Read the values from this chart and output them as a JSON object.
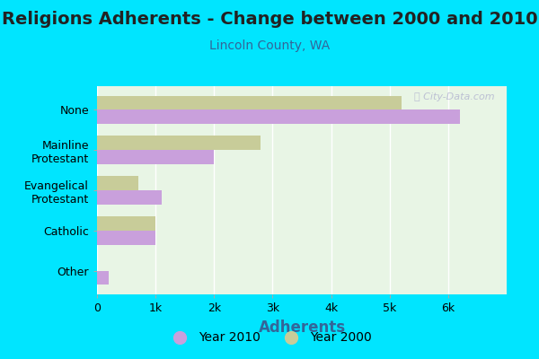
{
  "title": "Religions Adherents - Change between 2000 and 2010",
  "subtitle": "Lincoln County, WA",
  "xlabel": "Adherents",
  "categories": [
    "None",
    "Mainline\nProtestant",
    "Evangelical\nProtestant",
    "Catholic",
    "Other"
  ],
  "values_2010": [
    6200,
    2000,
    1100,
    1000,
    200
  ],
  "values_2000": [
    5200,
    2800,
    700,
    1000,
    0
  ],
  "color_2010": "#c9a0dc",
  "color_2000": "#c8cc99",
  "bg_outer": "#00e5ff",
  "bg_plot": "#e8f5e5",
  "title_fontsize": 14,
  "subtitle_fontsize": 10,
  "xlabel_fontsize": 12,
  "tick_label_fontsize": 9,
  "legend_fontsize": 10,
  "xlim": [
    0,
    7000
  ],
  "xticks": [
    0,
    1000,
    2000,
    3000,
    4000,
    5000,
    6000
  ],
  "xticklabels": [
    "0",
    "1k",
    "2k",
    "3k",
    "4k",
    "5k",
    "6k"
  ],
  "watermark": "ⓘ City-Data.com"
}
